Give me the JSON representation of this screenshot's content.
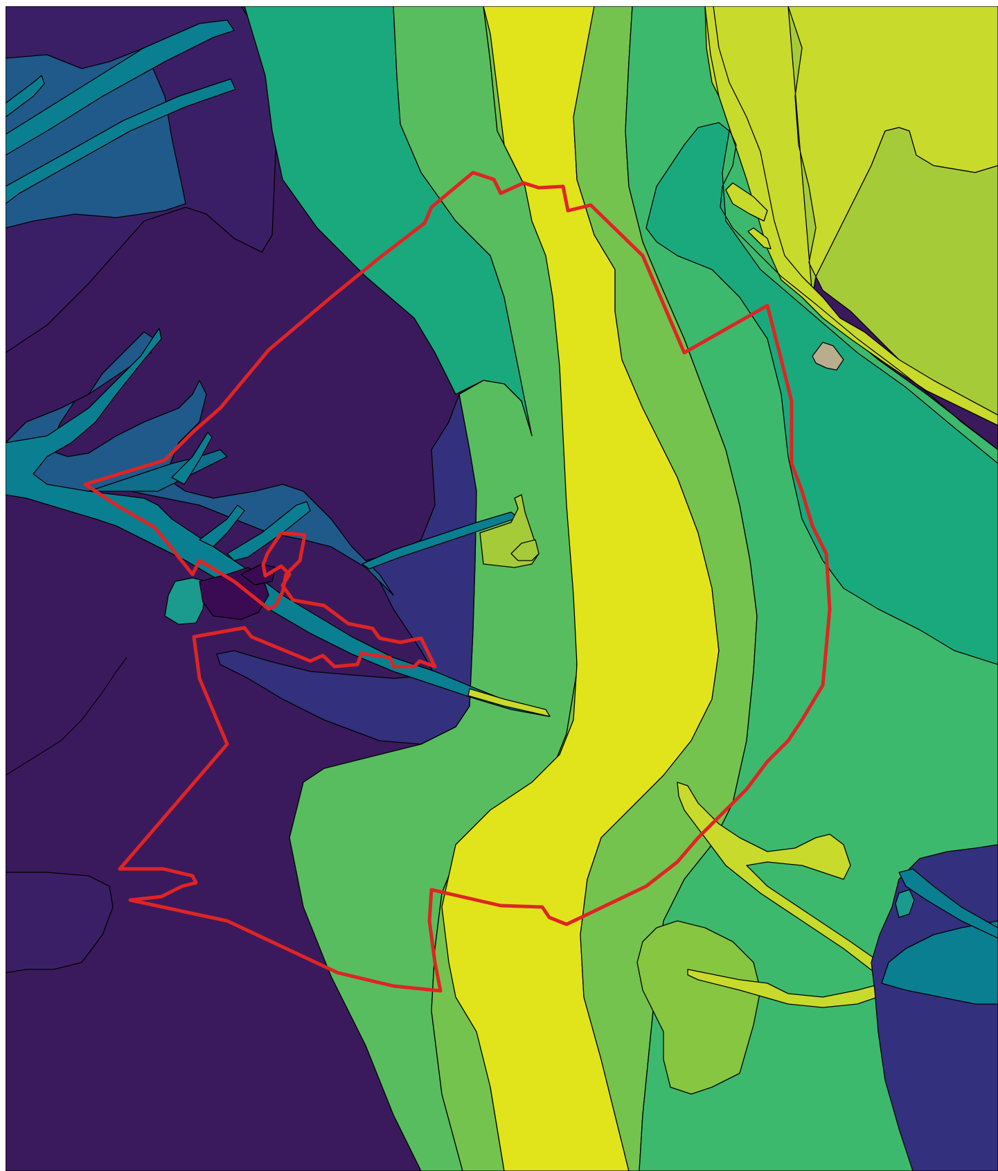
{
  "map": {
    "colors": {
      "deep_purple": "#3a1a5c",
      "purple": "#3b1f66",
      "indigo": "#33307d",
      "dark_navy": "#3a0b52",
      "steel_blue": "#1f5a8a",
      "teal_dark": "#0f6e8c",
      "teal": "#0a7f91",
      "teal_mid": "#1a9b8e",
      "teal_green": "#1aa97c",
      "sea_green": "#27b47a",
      "green": "#3db96d",
      "green_light": "#58bd5e",
      "lime_green": "#74c34e",
      "olive_green": "#86c640",
      "yellow_green": "#a6cb38",
      "chartreuse": "#c8da2b",
      "yellow": "#e1e41a",
      "muted_blue_teal": "#1b6b8a",
      "tan_patch": "#b8ad8d",
      "boundary_red": "#e02424",
      "road_black": "#1a1a1a"
    },
    "icons": {
      "boundary": "red-outline-boundary",
      "road": "road-line",
      "building": "building-patch"
    }
  }
}
